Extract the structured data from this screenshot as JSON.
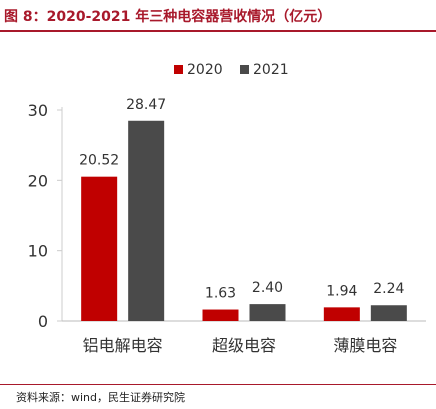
{
  "figure": {
    "title": "图 8：2020-2021 年三种电容器营收情况（亿元）",
    "source": "资料来源：wind，民生证券研究院"
  },
  "colors": {
    "accent": "#a8192b",
    "series_2020": "#c00000",
    "series_2021": "#4a4a4a"
  },
  "chart_data": {
    "type": "bar",
    "categories": [
      "铝电解电容",
      "超级电容",
      "薄膜电容"
    ],
    "series": [
      {
        "name": "2020",
        "values": [
          20.52,
          1.63,
          1.94
        ]
      },
      {
        "name": "2021",
        "values": [
          28.47,
          2.4,
          2.24
        ]
      }
    ],
    "data_labels": [
      [
        "20.52",
        "1.63",
        "1.94"
      ],
      [
        "28.47",
        "2.40",
        "2.24"
      ]
    ],
    "ylim": [
      0,
      30
    ],
    "yticks": [
      0,
      10,
      20,
      30
    ],
    "grid": false,
    "legend": "top-center"
  }
}
